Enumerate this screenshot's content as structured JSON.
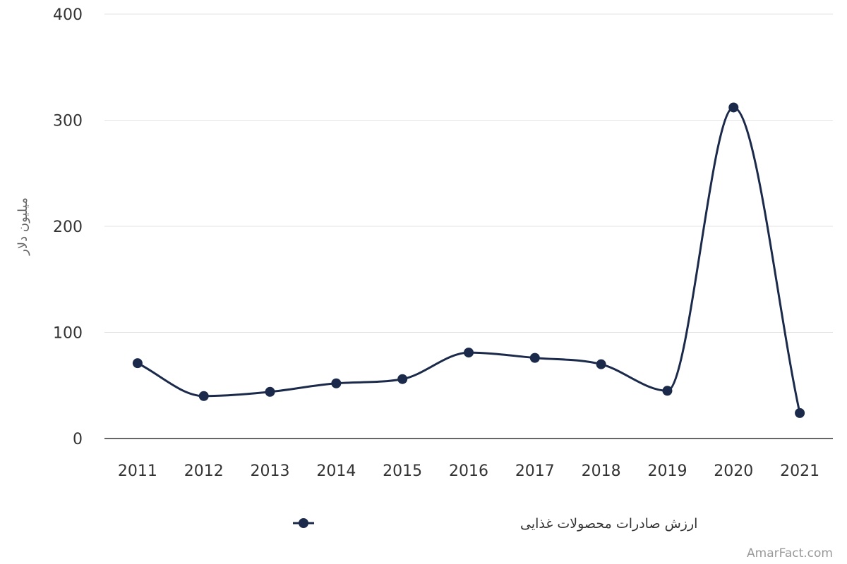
{
  "chart_data": {
    "type": "line",
    "x": [
      "2011",
      "2012",
      "2013",
      "2014",
      "2015",
      "2016",
      "2017",
      "2018",
      "2019",
      "2020",
      "2021"
    ],
    "series": [
      {
        "name": "ارزش صادرات محصولات غذایی",
        "values": [
          71,
          40,
          44,
          52,
          56,
          81,
          76,
          70,
          45,
          312,
          24
        ],
        "color": "#1b2a4a"
      }
    ],
    "title": "",
    "xlabel": "",
    "ylabel": "میلیون دلار",
    "ylim": [
      0,
      400
    ],
    "yticks": [
      0,
      100,
      200,
      300,
      400
    ],
    "grid": true,
    "legend_position": "bottom"
  },
  "credit": "AmarFact.com"
}
